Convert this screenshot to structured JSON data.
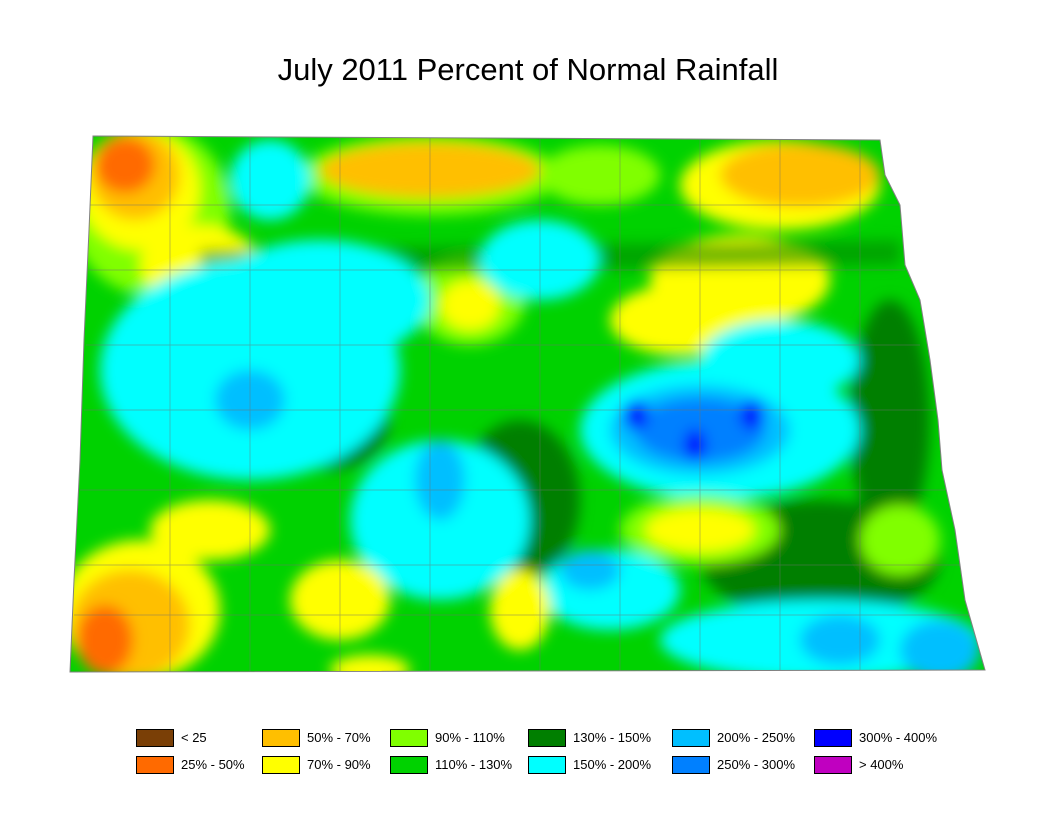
{
  "title": "July 2011 Percent of Normal Rainfall",
  "legend": [
    {
      "label": "< 25",
      "color": "#7a3f06"
    },
    {
      "label": "25% - 50%",
      "color": "#ff6a00"
    },
    {
      "label": "50% - 70%",
      "color": "#ffbf00"
    },
    {
      "label": "70% - 90%",
      "color": "#ffff00"
    },
    {
      "label": "90% - 110%",
      "color": "#80ff00"
    },
    {
      "label": "110% - 130%",
      "color": "#00d200"
    },
    {
      "label": "130% - 150%",
      "color": "#007f00"
    },
    {
      "label": "150% - 200%",
      "color": "#00ffff"
    },
    {
      "label": "200% - 250%",
      "color": "#00bfff"
    },
    {
      "label": "250% - 300%",
      "color": "#0080ff"
    },
    {
      "label": "300% - 400%",
      "color": "#0000ff"
    },
    {
      "label": "> 400%",
      "color": "#c000c0"
    }
  ]
}
